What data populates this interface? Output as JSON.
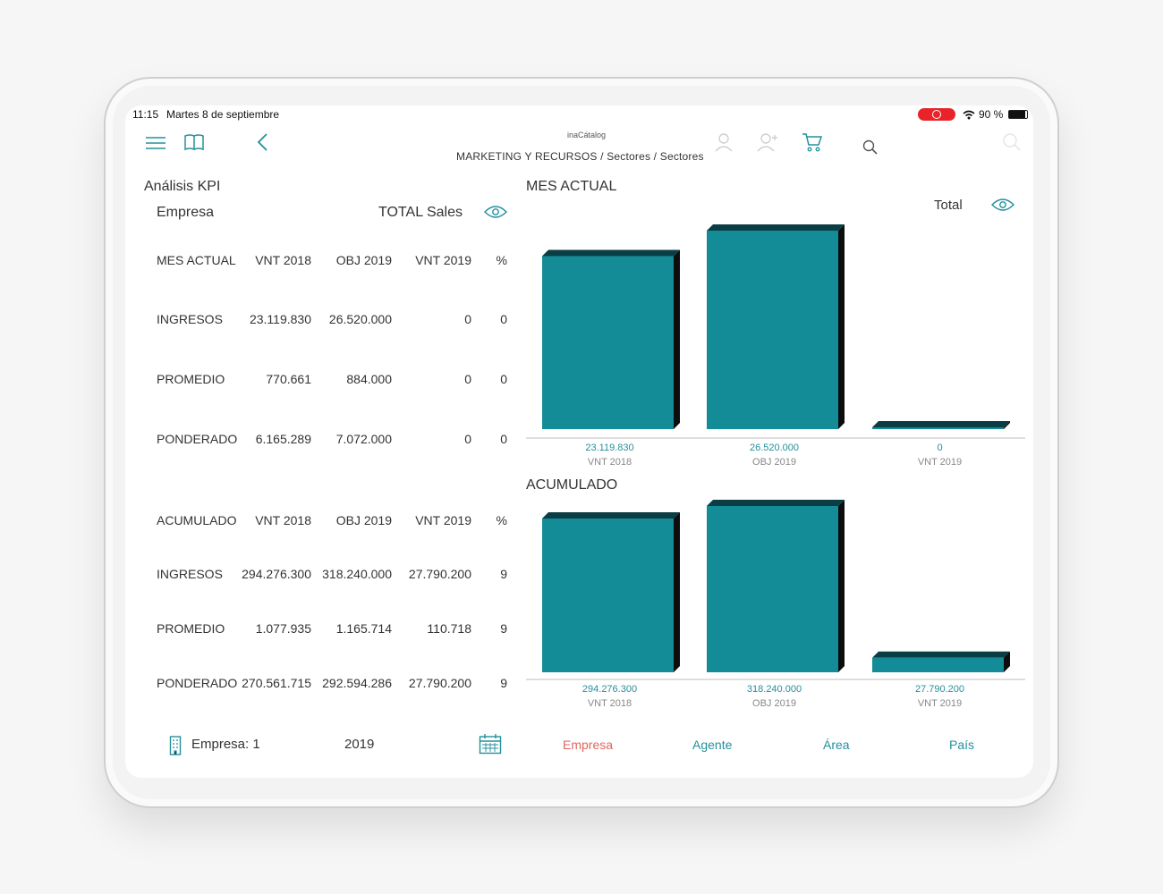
{
  "status_bar": {
    "time": "11:15",
    "date": "Martes 8 de septiembre",
    "battery_text": "90 %",
    "battery_level": 0.9
  },
  "header": {
    "brand": "inaCátalog",
    "breadcrumb": "MARKETING Y RECURSOS / Sectores / Sectores"
  },
  "left_panel": {
    "title": "Análisis KPI",
    "entity_label": "Empresa",
    "sales_label": "TOTAL Sales",
    "mes_table": {
      "headers": [
        "MES ACTUAL",
        "VNT 2018",
        "OBJ 2019",
        "VNT 2019",
        "%"
      ],
      "rows": [
        [
          "INGRESOS",
          "23.119.830",
          "26.520.000",
          "0",
          "0"
        ],
        [
          "PROMEDIO",
          "770.661",
          "884.000",
          "0",
          "0"
        ],
        [
          "PONDERADO",
          "6.165.289",
          "7.072.000",
          "0",
          "0"
        ]
      ]
    },
    "acum_table": {
      "headers": [
        "ACUMULADO",
        "VNT 2018",
        "OBJ 2019",
        "VNT 2019",
        "%"
      ],
      "rows": [
        [
          "INGRESOS",
          "294.276.300",
          "318.240.000",
          "27.790.200",
          "9"
        ],
        [
          "PROMEDIO",
          "1.077.935",
          "1.165.714",
          "110.718",
          "9"
        ],
        [
          "PONDERADO",
          "270.561.715",
          "292.594.286",
          "27.790.200",
          "9"
        ]
      ]
    }
  },
  "right_panel": {
    "total_label": "Total"
  },
  "chart_data": [
    {
      "type": "bar",
      "title": "MES ACTUAL",
      "categories": [
        "VNT 2018",
        "OBJ 2019",
        "VNT 2019"
      ],
      "values": [
        23119830,
        26520000,
        0
      ],
      "value_labels": [
        "23.119.830",
        "26.520.000",
        "0"
      ],
      "ylim": [
        0,
        26520000
      ],
      "grid": false,
      "legend": "none",
      "bar_color": "#138c98"
    },
    {
      "type": "bar",
      "title": "ACUMULADO",
      "categories": [
        "VNT 2018",
        "OBJ 2019",
        "VNT 2019"
      ],
      "values": [
        294276300,
        318240000,
        27790200
      ],
      "value_labels": [
        "294.276.300",
        "318.240.000",
        "27.790.200"
      ],
      "ylim": [
        0,
        318240000
      ],
      "grid": false,
      "legend": "none",
      "bar_color": "#138c98"
    }
  ],
  "footer": {
    "company_label": "Empresa: 1",
    "year": "2019",
    "tabs": [
      "Empresa",
      "Agente",
      "Área",
      "País"
    ],
    "active_tab": "Empresa"
  },
  "colors": {
    "accent": "#23909c",
    "bar": "#138c98",
    "bar_top": "#0b3d45",
    "bar_side": "#0d0d0d",
    "active_tab": "#e0665f",
    "record_pill": "#e8242a"
  },
  "icons": [
    "menu-icon",
    "book-icon",
    "back-chevron-icon",
    "user-icon",
    "user-add-icon",
    "cart-icon",
    "search-icon",
    "eye-icon",
    "building-icon",
    "calendar-icon",
    "wifi-icon"
  ]
}
